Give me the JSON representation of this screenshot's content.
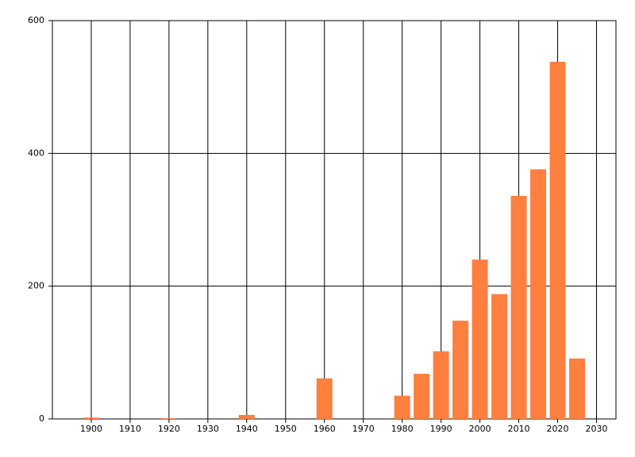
{
  "chart_data": {
    "type": "bar",
    "x": [
      1900,
      1920,
      1940,
      1960,
      1980,
      1985,
      1990,
      1995,
      2000,
      2005,
      2010,
      2015,
      2020,
      2025
    ],
    "values": [
      2,
      1,
      6,
      61,
      35,
      68,
      102,
      148,
      240,
      188,
      336,
      376,
      538,
      91
    ],
    "color": "#ff7f3f",
    "xlim": [
      1890,
      2035
    ],
    "xticks": [
      1900,
      1910,
      1920,
      1930,
      1940,
      1950,
      1960,
      1970,
      1980,
      1990,
      2000,
      2010,
      2020,
      2030
    ],
    "ylim": [
      0,
      600
    ],
    "yticks": [
      0,
      200,
      400,
      600
    ],
    "grid": true
  }
}
